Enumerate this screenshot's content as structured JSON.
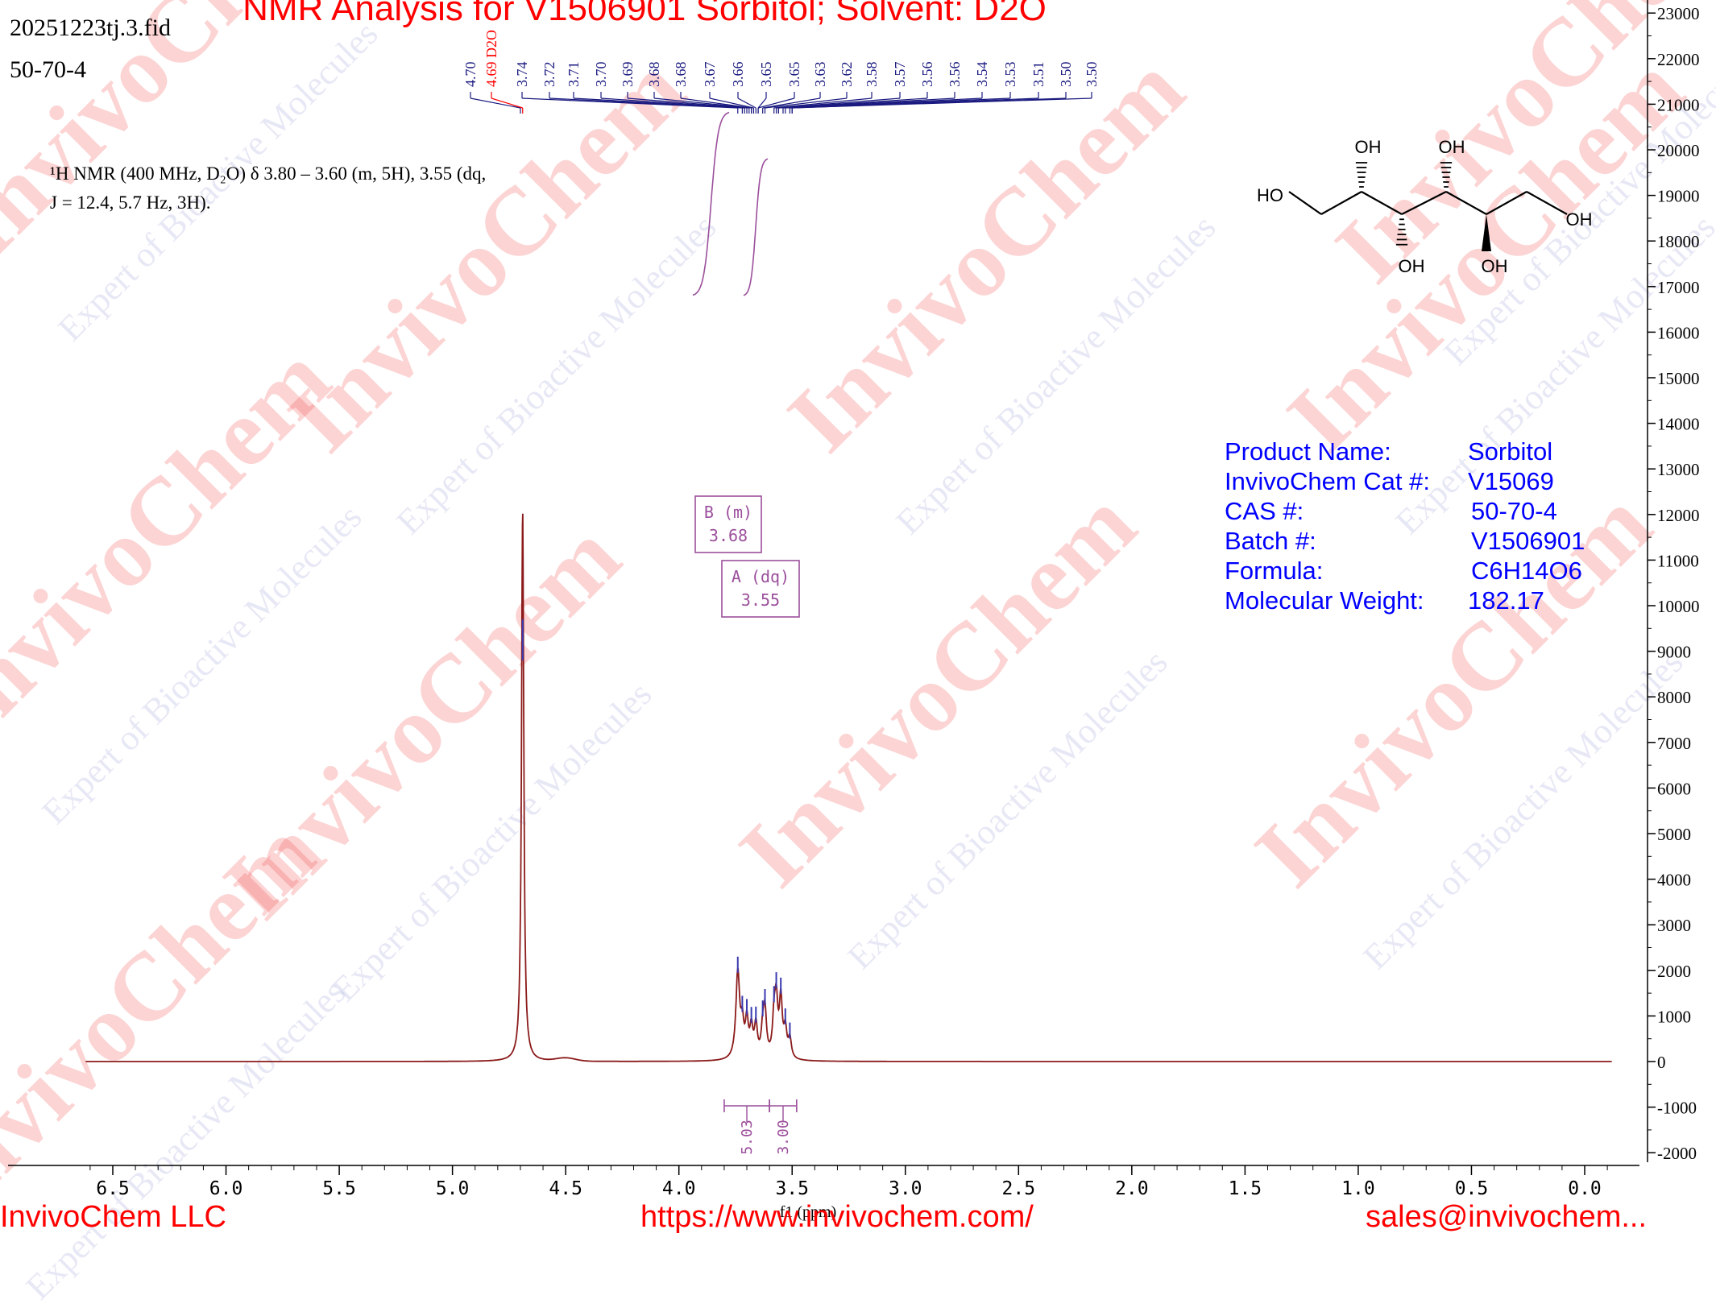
{
  "header": {
    "file_name": "20251223tj.3.fid",
    "cas_top": "50-70-4",
    "title": "NMR Analysis for V1506901 Sorbitol; Solvent: D2O"
  },
  "description": {
    "line1": "¹H NMR (400 MHz, D₂O) δ 3.80 – 3.60 (m, 5H), 3.55 (dq,",
    "line2": "J = 12.4, 5.7 Hz, 3H)."
  },
  "product_info": [
    {
      "label": "Product Name:",
      "value": "Sorbitol"
    },
    {
      "label": "InvivoChem Cat #:",
      "value": "V15069"
    },
    {
      "label": "CAS #:",
      "value": "50-70-4"
    },
    {
      "label": "Batch #:",
      "value": "V1506901"
    },
    {
      "label": "Formula:",
      "value": "C6H14O6"
    },
    {
      "label": "Molecular Weight:",
      "value": "182.17"
    }
  ],
  "structure": {
    "labels": [
      "HO",
      "OH",
      "OH",
      "OH",
      "OH",
      "OH"
    ]
  },
  "watermark": {
    "brand": "InvivoChem",
    "tagline_a": "Expert of Bioactive Molecules",
    "tagline_b": "Molecules"
  },
  "footer": {
    "company": "InvivoChem LLC",
    "website": "https://www.invivochem.com/",
    "email": "sales@invivochem..."
  },
  "colors": {
    "spectrum": "#8b1a1a",
    "peak_labels": "#1a1a80",
    "solvent_label": "#ff0000",
    "integration": "#9b4f9b",
    "product_text": "#0000ff",
    "title": "#ff0000"
  },
  "chart_data": {
    "type": "line",
    "xlabel": "f1 (ppm)",
    "ylabel": "",
    "xlim": [
      6.62,
      -0.12
    ],
    "ylim": [
      -2300,
      23200
    ],
    "x_ticks": [
      "6.5",
      "6.0",
      "5.5",
      "5.0",
      "4.5",
      "4.0",
      "3.5",
      "3.0",
      "2.5",
      "2.0",
      "1.5",
      "1.0",
      "0.5",
      "0.0"
    ],
    "y_ticks": [
      "23000",
      "22000",
      "21000",
      "20000",
      "19000",
      "18000",
      "17000",
      "16000",
      "15000",
      "14000",
      "13000",
      "12000",
      "11000",
      "10000",
      "9000",
      "8000",
      "7000",
      "6000",
      "5000",
      "4000",
      "3000",
      "2000",
      "1000",
      "0",
      "-1000",
      "-2000"
    ],
    "peaks": [
      {
        "ppm": 4.69,
        "height": 12100,
        "width": 0.006
      },
      {
        "ppm": 3.74,
        "height": 1900,
        "width": 0.01
      },
      {
        "ppm": 3.72,
        "height": 650,
        "width": 0.008
      },
      {
        "ppm": 3.7,
        "height": 780,
        "width": 0.008
      },
      {
        "ppm": 3.68,
        "height": 620,
        "width": 0.008
      },
      {
        "ppm": 3.66,
        "height": 700,
        "width": 0.008
      },
      {
        "ppm": 3.63,
        "height": 560,
        "width": 0.008
      },
      {
        "ppm": 3.62,
        "height": 980,
        "width": 0.008
      },
      {
        "ppm": 3.58,
        "height": 780,
        "width": 0.008
      },
      {
        "ppm": 3.57,
        "height": 1150,
        "width": 0.008
      },
      {
        "ppm": 3.55,
        "height": 1250,
        "width": 0.008
      },
      {
        "ppm": 3.53,
        "height": 600,
        "width": 0.008
      },
      {
        "ppm": 3.51,
        "height": 430,
        "width": 0.008
      }
    ],
    "peak_labels": [
      "4.70",
      "4.69 D2O",
      "3.74",
      "3.72",
      "3.71",
      "3.70",
      "3.69",
      "3.68",
      "3.68",
      "3.67",
      "3.66",
      "3.65",
      "3.65",
      "3.63",
      "3.62",
      "3.58",
      "3.57",
      "3.56",
      "3.56",
      "3.54",
      "3.53",
      "3.51",
      "3.50",
      "3.50"
    ],
    "peak_label_ppm": [
      4.7,
      4.69,
      3.74,
      3.72,
      3.71,
      3.7,
      3.69,
      3.68,
      3.68,
      3.67,
      3.66,
      3.65,
      3.65,
      3.63,
      3.62,
      3.58,
      3.57,
      3.56,
      3.56,
      3.54,
      3.53,
      3.51,
      3.5,
      3.5
    ],
    "multiplets": [
      {
        "label": "B (m)",
        "shift": "3.68"
      },
      {
        "label": "A (dq)",
        "shift": "3.55"
      }
    ],
    "integrals": [
      {
        "from": 3.8,
        "to": 3.6,
        "value": "5.03"
      },
      {
        "from": 3.6,
        "to": 3.48,
        "value": "3.00"
      }
    ]
  }
}
